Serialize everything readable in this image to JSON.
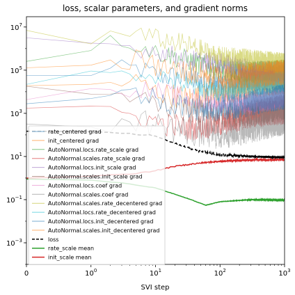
{
  "chart_data": {
    "type": "line",
    "title": "loss, scalar parameters, and gradient norms",
    "xlabel": "SVI step",
    "ylabel": "",
    "xscale": "symlog",
    "yscale": "log",
    "xlim": [
      0,
      1000
    ],
    "ylim": [
      0.0001,
      30000000
    ],
    "grid": false,
    "legend_position": "lower-left",
    "x_ticks": [
      {
        "value": 0,
        "base": "0",
        "exp": ""
      },
      {
        "value": 1,
        "base": "10",
        "exp": "0"
      },
      {
        "value": 10,
        "base": "10",
        "exp": "1"
      },
      {
        "value": 100,
        "base": "10",
        "exp": "2"
      },
      {
        "value": 1000,
        "base": "10",
        "exp": "3"
      }
    ],
    "y_ticks": [
      {
        "value": 0.001,
        "base": "10",
        "exp": "−3"
      },
      {
        "value": 0.1,
        "base": "10",
        "exp": "−1"
      },
      {
        "value": 10,
        "base": "10",
        "exp": "1"
      },
      {
        "value": 1000,
        "base": "10",
        "exp": "3"
      },
      {
        "value": 100000,
        "base": "10",
        "exp": "5"
      },
      {
        "value": 10000000,
        "base": "10",
        "exp": "7"
      }
    ],
    "series": [
      {
        "name": "rate_centered grad",
        "color": "#1f77b4",
        "style": "thin",
        "noise": 0.6,
        "points": [
          [
            0,
            50000
          ],
          [
            1,
            80000
          ],
          [
            5,
            120000
          ],
          [
            10,
            60000
          ],
          [
            30,
            40000
          ],
          [
            100,
            20000
          ],
          [
            300,
            40000
          ],
          [
            1000,
            50000
          ]
        ]
      },
      {
        "name": "init_centered grad",
        "color": "#ff7f0e",
        "style": "thin",
        "noise": 0.6,
        "points": [
          [
            0,
            15000
          ],
          [
            1,
            20000
          ],
          [
            5,
            30000
          ],
          [
            10,
            10000
          ],
          [
            30,
            5000
          ],
          [
            100,
            8000
          ],
          [
            300,
            20000
          ],
          [
            1000,
            30000
          ]
        ]
      },
      {
        "name": "AutoNormal.locs.rate_scale grad",
        "color": "#2ca02c",
        "style": "thin",
        "noise": 0.5,
        "points": [
          [
            0,
            300000
          ],
          [
            1,
            1500000
          ],
          [
            3,
            2500000
          ],
          [
            10,
            700000
          ],
          [
            30,
            300000
          ],
          [
            100,
            100000
          ],
          [
            300,
            80000
          ],
          [
            1000,
            100000
          ]
        ]
      },
      {
        "name": "AutoNormal.scales.rate_scale grad",
        "color": "#d62728",
        "style": "thin",
        "noise": 0.6,
        "points": [
          [
            0,
            1500
          ],
          [
            1,
            1000
          ],
          [
            5,
            800
          ],
          [
            10,
            400
          ],
          [
            30,
            200
          ],
          [
            100,
            300
          ],
          [
            300,
            800
          ],
          [
            1000,
            1200
          ]
        ]
      },
      {
        "name": "AutoNormal.locs.init_scale grad",
        "color": "#9467bd",
        "style": "thin",
        "noise": 0.5,
        "points": [
          [
            0,
            2500000
          ],
          [
            1,
            2000000
          ],
          [
            5,
            1000000
          ],
          [
            10,
            800000
          ],
          [
            30,
            300000
          ],
          [
            100,
            200000
          ],
          [
            300,
            100000
          ],
          [
            1000,
            80000
          ]
        ]
      },
      {
        "name": "AutoNormal.scales.init_scale grad",
        "color": "#8c564b",
        "style": "thin",
        "noise": 0.6,
        "points": [
          [
            0,
            15000
          ],
          [
            1,
            10000
          ],
          [
            5,
            5000
          ],
          [
            10,
            3000
          ],
          [
            30,
            1500
          ],
          [
            100,
            800
          ],
          [
            300,
            1000
          ],
          [
            1000,
            2000
          ]
        ]
      },
      {
        "name": "AutoNormal.locs.coef grad",
        "color": "#e377c2",
        "style": "thin",
        "noise": 0.5,
        "points": [
          [
            0,
            5000
          ],
          [
            1,
            8000
          ],
          [
            5,
            15000
          ],
          [
            10,
            10000
          ],
          [
            30,
            5000
          ],
          [
            100,
            3000
          ],
          [
            300,
            3000
          ],
          [
            1000,
            5000
          ]
        ]
      },
      {
        "name": "AutoNormal.scales.coef grad",
        "color": "#7f7f7f",
        "style": "thin",
        "noise": 0.7,
        "points": [
          [
            0,
            200
          ],
          [
            1,
            300
          ],
          [
            5,
            500
          ],
          [
            10,
            300
          ],
          [
            30,
            150
          ],
          [
            100,
            100
          ],
          [
            300,
            200
          ],
          [
            1000,
            500
          ]
        ]
      },
      {
        "name": "AutoNormal.scales.rate_decentered grad",
        "color": "#bcbd22",
        "style": "thin",
        "noise": 0.5,
        "points": [
          [
            0,
            8000000
          ],
          [
            1,
            3000000
          ],
          [
            5,
            5000000
          ],
          [
            10,
            3000000
          ],
          [
            30,
            1500000
          ],
          [
            100,
            400000
          ],
          [
            300,
            300000
          ],
          [
            1000,
            200000
          ]
        ]
      },
      {
        "name": "AutoNormal.locs.rate_decentered grad",
        "color": "#17becf",
        "style": "thin",
        "noise": 0.5,
        "points": [
          [
            0,
            30000
          ],
          [
            1,
            50000
          ],
          [
            5,
            80000
          ],
          [
            10,
            60000
          ],
          [
            30,
            20000
          ],
          [
            100,
            10000
          ],
          [
            300,
            20000
          ],
          [
            1000,
            30000
          ]
        ]
      },
      {
        "name": "AutoNormal.locs.init_decentered grad",
        "color": "#1f77b4",
        "style": "thin",
        "noise": 0.6,
        "points": [
          [
            0,
            3000
          ],
          [
            1,
            5000
          ],
          [
            5,
            8000
          ],
          [
            10,
            5000
          ],
          [
            30,
            2000
          ],
          [
            100,
            1500
          ],
          [
            300,
            3000
          ],
          [
            1000,
            6000
          ]
        ]
      },
      {
        "name": "AutoNormal.scales.init_decentered grad",
        "color": "#ff7f0e",
        "style": "thin",
        "noise": 0.6,
        "points": [
          [
            0,
            100000
          ],
          [
            1,
            200000
          ],
          [
            5,
            300000
          ],
          [
            10,
            150000
          ],
          [
            30,
            80000
          ],
          [
            100,
            50000
          ],
          [
            300,
            60000
          ],
          [
            1000,
            80000
          ]
        ]
      },
      {
        "name": "loss",
        "color": "#000000",
        "style": "dashed",
        "noise": 0.05,
        "points": [
          [
            0,
            150
          ],
          [
            1,
            140
          ],
          [
            3,
            120
          ],
          [
            10,
            90
          ],
          [
            20,
            40
          ],
          [
            40,
            20
          ],
          [
            100,
            12
          ],
          [
            300,
            10
          ],
          [
            1000,
            9
          ]
        ]
      },
      {
        "name": "rate_scale mean",
        "color": "#2ca02c",
        "style": "thick",
        "noise": 0.01,
        "points": [
          [
            0,
            0.9
          ],
          [
            1,
            0.8
          ],
          [
            3,
            0.6
          ],
          [
            10,
            0.35
          ],
          [
            30,
            0.12
          ],
          [
            60,
            0.055
          ],
          [
            100,
            0.08
          ],
          [
            300,
            0.1
          ],
          [
            1000,
            0.095
          ]
        ]
      },
      {
        "name": "init_scale mean",
        "color": "#d62728",
        "style": "thick",
        "noise": 0.03,
        "points": [
          [
            0,
            1
          ],
          [
            1,
            1.2
          ],
          [
            5,
            1.6
          ],
          [
            10,
            2.2
          ],
          [
            20,
            3.5
          ],
          [
            50,
            5
          ],
          [
            100,
            6
          ],
          [
            300,
            7
          ],
          [
            1000,
            7
          ]
        ]
      }
    ]
  }
}
